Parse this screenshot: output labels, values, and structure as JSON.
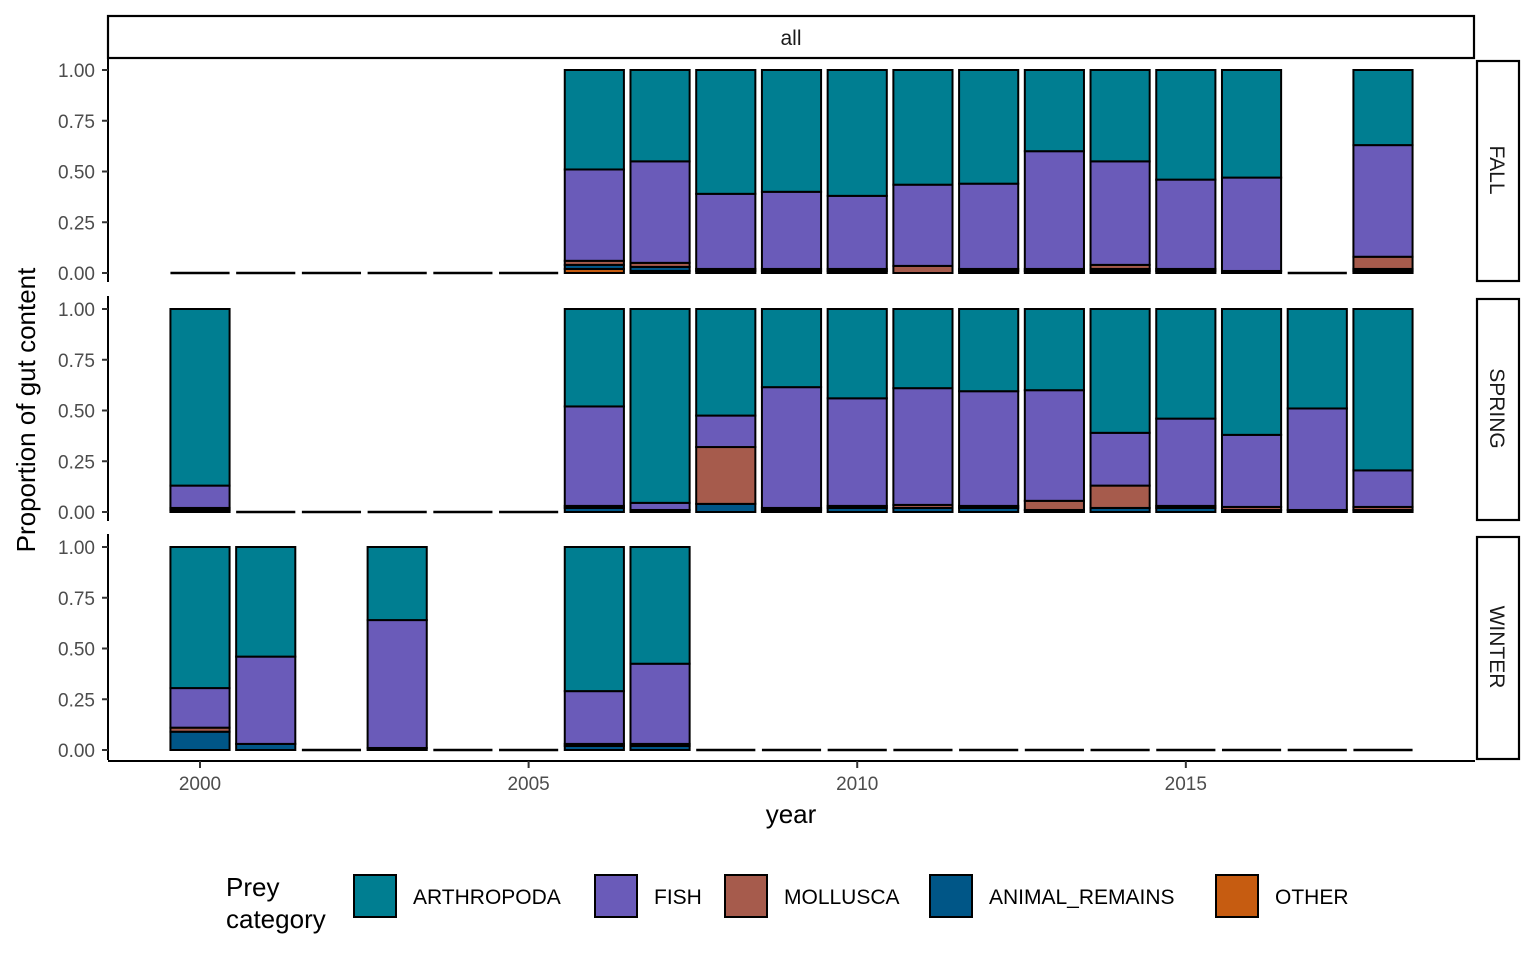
{
  "colors": {
    "ARTHROPODA": "#007E91",
    "FISH": "#6A5BB9",
    "MOLLUSCA": "#A65B4C",
    "ANIMAL_REMAINS": "#005687",
    "OTHER": "#C65C11"
  },
  "chart_data": {
    "type": "bar",
    "stacked": "proportion",
    "facet_top_label": "all",
    "facets": [
      "FALL",
      "SPRING",
      "WINTER"
    ],
    "xlabel": "year",
    "ylabel": "Proportion of gut content",
    "x_ticks": [
      2000,
      2005,
      2010,
      2015
    ],
    "y_ticks": [
      "0.00",
      "0.25",
      "0.50",
      "0.75",
      "1.00"
    ],
    "ylim": [
      0,
      1
    ],
    "xlim": [
      1998.6,
      2019.4
    ],
    "years": [
      2000,
      2001,
      2002,
      2003,
      2004,
      2005,
      2006,
      2007,
      2008,
      2009,
      2010,
      2011,
      2012,
      2013,
      2014,
      2015,
      2016,
      2017,
      2018
    ],
    "legend": {
      "title_line1": "Prey",
      "title_line2": "category",
      "position": "bottom",
      "entries": [
        "ARTHROPODA",
        "FISH",
        "MOLLUSCA",
        "ANIMAL_REMAINS",
        "OTHER"
      ]
    },
    "stack_order_bottom_to_top": [
      "OTHER",
      "ANIMAL_REMAINS",
      "MOLLUSCA",
      "FISH",
      "ARTHROPODA"
    ],
    "panels": [
      {
        "season": "FALL",
        "bars": [
          {
            "year": 2000,
            "empty": true
          },
          {
            "year": 2001,
            "empty": true
          },
          {
            "year": 2002,
            "empty": true
          },
          {
            "year": 2003,
            "empty": true
          },
          {
            "year": 2004,
            "empty": true
          },
          {
            "year": 2005,
            "empty": true
          },
          {
            "year": 2006,
            "OTHER": 0.02,
            "ANIMAL_REMAINS": 0.02,
            "MOLLUSCA": 0.02,
            "FISH": 0.45,
            "ARTHROPODA": 0.49
          },
          {
            "year": 2007,
            "OTHER": 0.01,
            "ANIMAL_REMAINS": 0.02,
            "MOLLUSCA": 0.02,
            "FISH": 0.5,
            "ARTHROPODA": 0.45
          },
          {
            "year": 2008,
            "OTHER": 0.0,
            "ANIMAL_REMAINS": 0.01,
            "MOLLUSCA": 0.01,
            "FISH": 0.37,
            "ARTHROPODA": 0.61
          },
          {
            "year": 2009,
            "OTHER": 0.0,
            "ANIMAL_REMAINS": 0.01,
            "MOLLUSCA": 0.01,
            "FISH": 0.38,
            "ARTHROPODA": 0.6
          },
          {
            "year": 2010,
            "OTHER": 0.0,
            "ANIMAL_REMAINS": 0.01,
            "MOLLUSCA": 0.01,
            "FISH": 0.36,
            "ARTHROPODA": 0.62
          },
          {
            "year": 2011,
            "OTHER": 0.0,
            "ANIMAL_REMAINS": 0.0,
            "MOLLUSCA": 0.035,
            "FISH": 0.4,
            "ARTHROPODA": 0.565
          },
          {
            "year": 2012,
            "OTHER": 0.0,
            "ANIMAL_REMAINS": 0.01,
            "MOLLUSCA": 0.01,
            "FISH": 0.42,
            "ARTHROPODA": 0.56
          },
          {
            "year": 2013,
            "OTHER": 0.0,
            "ANIMAL_REMAINS": 0.01,
            "MOLLUSCA": 0.01,
            "FISH": 0.58,
            "ARTHROPODA": 0.4
          },
          {
            "year": 2014,
            "OTHER": 0.01,
            "ANIMAL_REMAINS": 0.01,
            "MOLLUSCA": 0.02,
            "FISH": 0.51,
            "ARTHROPODA": 0.45
          },
          {
            "year": 2015,
            "OTHER": 0.01,
            "ANIMAL_REMAINS": 0.0,
            "MOLLUSCA": 0.01,
            "FISH": 0.44,
            "ARTHROPODA": 0.54
          },
          {
            "year": 2016,
            "OTHER": 0.0,
            "ANIMAL_REMAINS": 0.01,
            "MOLLUSCA": 0.0,
            "FISH": 0.46,
            "ARTHROPODA": 0.53
          },
          {
            "year": 2017,
            "empty": true
          },
          {
            "year": 2018,
            "OTHER": 0.01,
            "ANIMAL_REMAINS": 0.01,
            "MOLLUSCA": 0.06,
            "FISH": 0.55,
            "ARTHROPODA": 0.37
          }
        ]
      },
      {
        "season": "SPRING",
        "bars": [
          {
            "year": 2000,
            "OTHER": 0.0,
            "ANIMAL_REMAINS": 0.01,
            "MOLLUSCA": 0.01,
            "FISH": 0.11,
            "ARTHROPODA": 0.87
          },
          {
            "year": 2001,
            "empty": true
          },
          {
            "year": 2002,
            "empty": true
          },
          {
            "year": 2003,
            "empty": true
          },
          {
            "year": 2004,
            "empty": true
          },
          {
            "year": 2005,
            "empty": true
          },
          {
            "year": 2006,
            "OTHER": 0.0,
            "ANIMAL_REMAINS": 0.02,
            "MOLLUSCA": 0.01,
            "FISH": 0.49,
            "ARTHROPODA": 0.48
          },
          {
            "year": 2007,
            "OTHER": 0.0,
            "ANIMAL_REMAINS": 0.0,
            "MOLLUSCA": 0.01,
            "FISH": 0.035,
            "ARTHROPODA": 0.955
          },
          {
            "year": 2008,
            "OTHER": 0.0,
            "ANIMAL_REMAINS": 0.04,
            "MOLLUSCA": 0.28,
            "FISH": 0.155,
            "ARTHROPODA": 0.525
          },
          {
            "year": 2009,
            "OTHER": 0.0,
            "ANIMAL_REMAINS": 0.01,
            "MOLLUSCA": 0.01,
            "FISH": 0.595,
            "ARTHROPODA": 0.385
          },
          {
            "year": 2010,
            "OTHER": 0.0,
            "ANIMAL_REMAINS": 0.02,
            "MOLLUSCA": 0.01,
            "FISH": 0.53,
            "ARTHROPODA": 0.44
          },
          {
            "year": 2011,
            "OTHER": 0.0,
            "ANIMAL_REMAINS": 0.02,
            "MOLLUSCA": 0.015,
            "FISH": 0.575,
            "ARTHROPODA": 0.39
          },
          {
            "year": 2012,
            "OTHER": 0.0,
            "ANIMAL_REMAINS": 0.02,
            "MOLLUSCA": 0.01,
            "FISH": 0.565,
            "ARTHROPODA": 0.405
          },
          {
            "year": 2013,
            "OTHER": 0.0,
            "ANIMAL_REMAINS": 0.01,
            "MOLLUSCA": 0.045,
            "FISH": 0.545,
            "ARTHROPODA": 0.4
          },
          {
            "year": 2014,
            "OTHER": 0.0,
            "ANIMAL_REMAINS": 0.02,
            "MOLLUSCA": 0.11,
            "FISH": 0.26,
            "ARTHROPODA": 0.61
          },
          {
            "year": 2015,
            "OTHER": 0.0,
            "ANIMAL_REMAINS": 0.02,
            "MOLLUSCA": 0.01,
            "FISH": 0.43,
            "ARTHROPODA": 0.54
          },
          {
            "year": 2016,
            "OTHER": 0.0,
            "ANIMAL_REMAINS": 0.01,
            "MOLLUSCA": 0.015,
            "FISH": 0.355,
            "ARTHROPODA": 0.62
          },
          {
            "year": 2017,
            "OTHER": 0.0,
            "ANIMAL_REMAINS": 0.01,
            "MOLLUSCA": 0.0,
            "FISH": 0.5,
            "ARTHROPODA": 0.49
          },
          {
            "year": 2018,
            "OTHER": 0.0,
            "ANIMAL_REMAINS": 0.01,
            "MOLLUSCA": 0.015,
            "FISH": 0.18,
            "ARTHROPODA": 0.795
          }
        ]
      },
      {
        "season": "WINTER",
        "bars": [
          {
            "year": 2000,
            "OTHER": 0.0,
            "ANIMAL_REMAINS": 0.09,
            "MOLLUSCA": 0.02,
            "FISH": 0.195,
            "ARTHROPODA": 0.695
          },
          {
            "year": 2001,
            "OTHER": 0.0,
            "ANIMAL_REMAINS": 0.03,
            "MOLLUSCA": 0.0,
            "FISH": 0.43,
            "ARTHROPODA": 0.54
          },
          {
            "year": 2002,
            "empty": true
          },
          {
            "year": 2003,
            "OTHER": 0.0,
            "ANIMAL_REMAINS": 0.01,
            "MOLLUSCA": 0.0,
            "FISH": 0.63,
            "ARTHROPODA": 0.36
          },
          {
            "year": 2004,
            "empty": true
          },
          {
            "year": 2005,
            "empty": true
          },
          {
            "year": 2006,
            "OTHER": 0.0,
            "ANIMAL_REMAINS": 0.02,
            "MOLLUSCA": 0.01,
            "FISH": 0.26,
            "ARTHROPODA": 0.71
          },
          {
            "year": 2007,
            "OTHER": 0.0,
            "ANIMAL_REMAINS": 0.02,
            "MOLLUSCA": 0.01,
            "FISH": 0.395,
            "ARTHROPODA": 0.575
          },
          {
            "year": 2008,
            "empty": true
          },
          {
            "year": 2009,
            "empty": true
          },
          {
            "year": 2010,
            "empty": true
          },
          {
            "year": 2011,
            "empty": true
          },
          {
            "year": 2012,
            "empty": true
          },
          {
            "year": 2013,
            "empty": true
          },
          {
            "year": 2014,
            "empty": true
          },
          {
            "year": 2015,
            "empty": true
          },
          {
            "year": 2016,
            "empty": true
          },
          {
            "year": 2017,
            "empty": true
          },
          {
            "year": 2018,
            "empty": true
          }
        ]
      }
    ]
  }
}
